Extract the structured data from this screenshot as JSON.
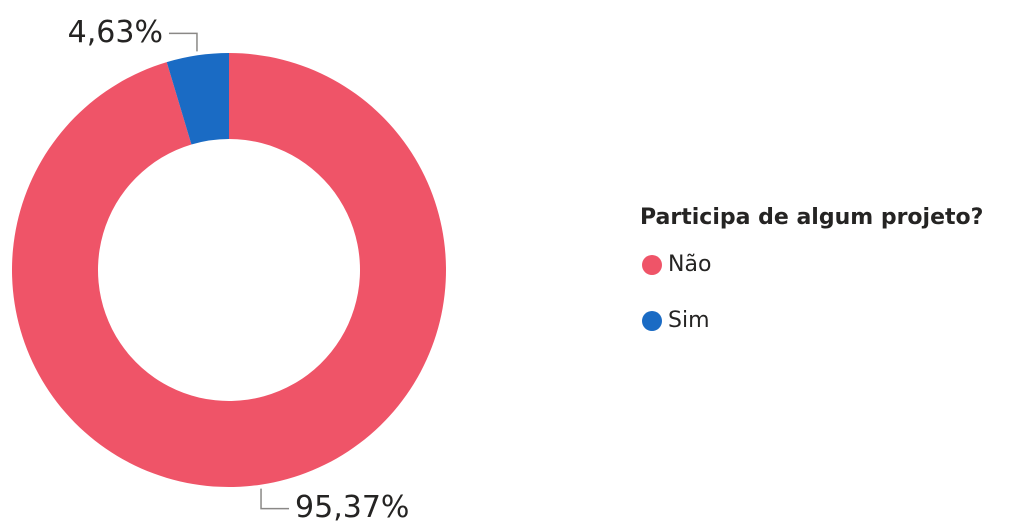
{
  "chart_data": {
    "type": "donut",
    "legend_title": "Participa de algum projeto?",
    "categories": [
      "Não",
      "Sim"
    ],
    "values": [
      95.37,
      4.63
    ],
    "value_labels": [
      "95,37%",
      "4,63%"
    ],
    "colors": [
      "#ef5468",
      "#1a6bc4"
    ],
    "legend": "right"
  }
}
